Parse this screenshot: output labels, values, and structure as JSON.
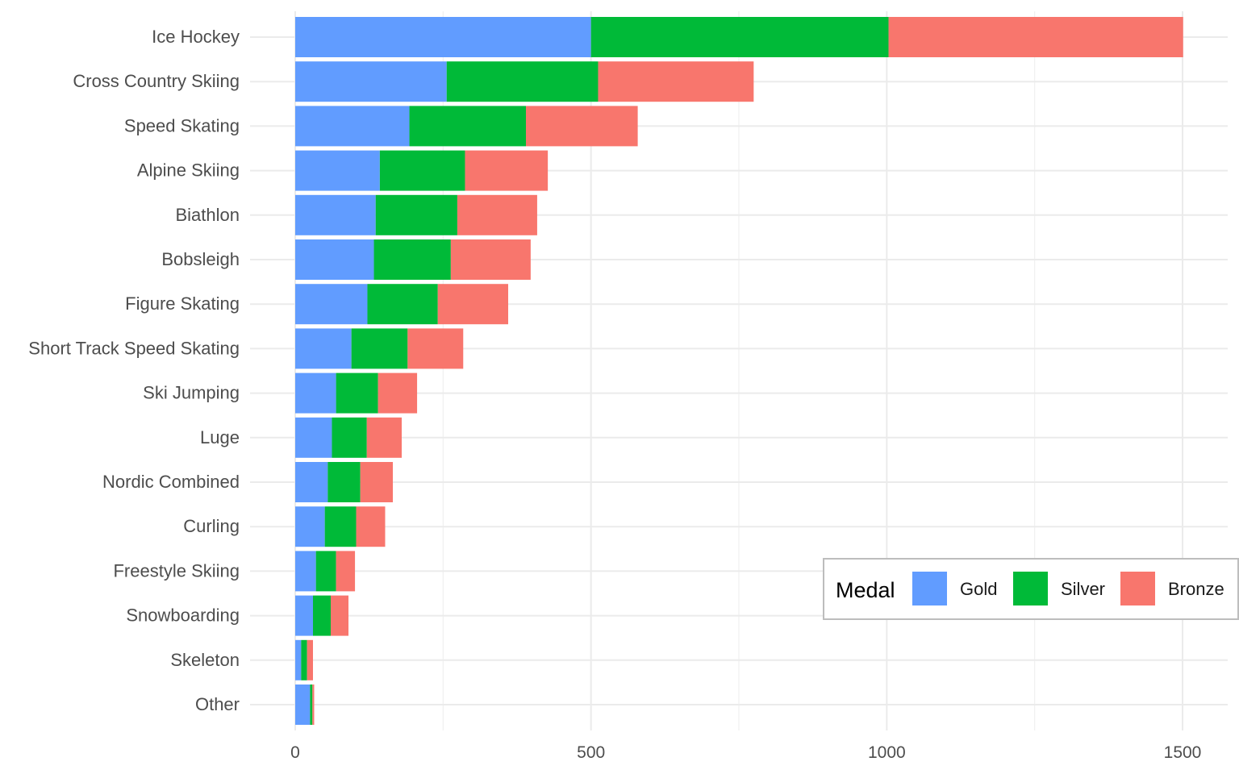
{
  "chart_data": {
    "type": "bar",
    "orientation": "horizontal",
    "stacked": true,
    "title": "",
    "xlabel": "",
    "ylabel": "",
    "xlim": [
      0,
      1500
    ],
    "x_ticks": [
      "0",
      "500",
      "1000",
      "1500"
    ],
    "x_tick_values": [
      0,
      500,
      1000,
      1500
    ],
    "grid": true,
    "legend_position": "bottom-right",
    "categories": [
      "Ice Hockey",
      "Cross Country Skiing",
      "Speed Skating",
      "Alpine Skiing",
      "Biathlon",
      "Bobsleigh",
      "Figure Skating",
      "Short Track Speed Skating",
      "Ski Jumping",
      "Luge",
      "Nordic Combined",
      "Curling",
      "Freestyle Skiing",
      "Snowboarding",
      "Skeleton",
      "Other"
    ],
    "legend": {
      "title": "Medal"
    },
    "series": [
      {
        "name": "Gold",
        "color": "#619CFF",
        "values": [
          500,
          256,
          193,
          143,
          136,
          133,
          122,
          95,
          69,
          62,
          55,
          50,
          35,
          30,
          10,
          25
        ]
      },
      {
        "name": "Silver",
        "color": "#00BA38",
        "values": [
          503,
          256,
          197,
          144,
          138,
          130,
          119,
          95,
          71,
          59,
          55,
          53,
          34,
          30,
          10,
          4
        ]
      },
      {
        "name": "Bronze",
        "color": "#F8766D",
        "values": [
          498,
          263,
          189,
          140,
          135,
          135,
          119,
          94,
          66,
          59,
          55,
          49,
          32,
          30,
          10,
          3
        ]
      }
    ]
  }
}
